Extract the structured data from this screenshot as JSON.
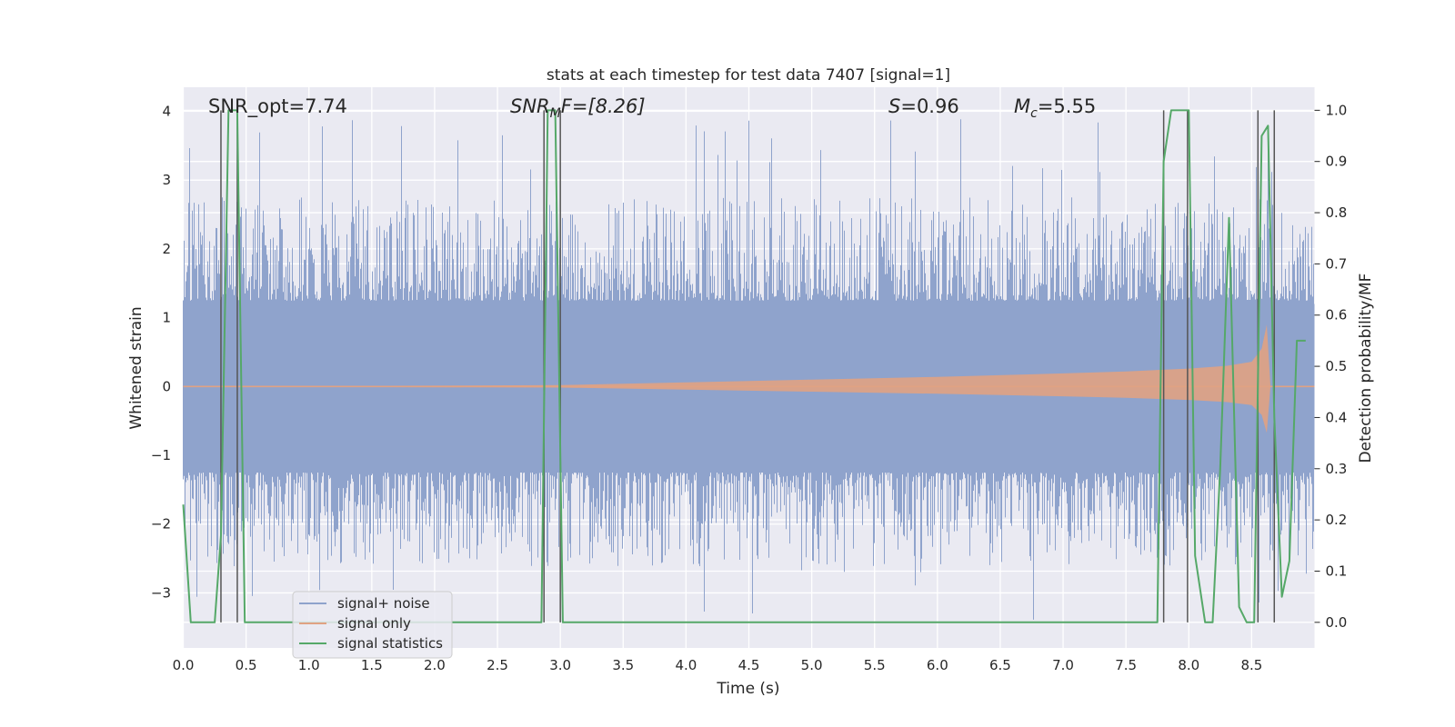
{
  "chart_data": {
    "type": "line",
    "title": "stats at each timestep for test data 7407 [signal=1]",
    "xlabel": "Time (s)",
    "ylabel": "Whitened strain",
    "ylabel_right": "Detection probability/MF",
    "xlim": [
      0,
      9
    ],
    "ylim": [
      -3.8,
      4.35
    ],
    "ylim_right": [
      -0.05,
      1.045
    ],
    "x_ticks": [
      "0.0",
      "0.5",
      "1.0",
      "1.5",
      "2.0",
      "2.5",
      "3.0",
      "3.5",
      "4.0",
      "4.5",
      "5.0",
      "5.5",
      "6.0",
      "6.5",
      "7.0",
      "7.5",
      "8.0",
      "8.5"
    ],
    "y_ticks": [
      "−3",
      "−2",
      "−1",
      "0",
      "1",
      "2",
      "3",
      "4"
    ],
    "y_ticks_right": [
      "0.0",
      "0.1",
      "0.2",
      "0.3",
      "0.4",
      "0.5",
      "0.6",
      "0.7",
      "0.8",
      "0.9",
      "1.0"
    ],
    "grid": true,
    "legend_position": "lower-left",
    "annotations": {
      "snr_opt": "SNR_opt=7.74",
      "snr_mf_base": "SNR",
      "snr_mf_sub": "M",
      "snr_mf_rest": "F=[8.26]",
      "s_var": "S",
      "s_rest": "=0.96",
      "mc_var": "M",
      "mc_sub": "c",
      "mc_rest": "=5.55"
    },
    "series": [
      {
        "name": "signal+ noise",
        "color": "#8fa3cc",
        "noise_envelope": {
          "core": 1.2,
          "peak_max": 4.0,
          "peak_min": -3.45
        }
      },
      {
        "name": "signal only",
        "color": "#e0a283",
        "chirp_envelope": [
          [
            0,
            0.0
          ],
          [
            3.0,
            0.02
          ],
          [
            4.0,
            0.06
          ],
          [
            5.0,
            0.1
          ],
          [
            6.0,
            0.14
          ],
          [
            7.0,
            0.19
          ],
          [
            7.5,
            0.22
          ],
          [
            8.0,
            0.26
          ],
          [
            8.3,
            0.3
          ],
          [
            8.5,
            0.36
          ],
          [
            8.58,
            0.55
          ],
          [
            8.62,
            0.9
          ],
          [
            8.65,
            0.0
          ],
          [
            9.0,
            0.0
          ]
        ]
      },
      {
        "name": "signal statistics",
        "color": "#55a868",
        "x": [
          0.0,
          0.06,
          0.25,
          0.3,
          0.36,
          0.43,
          0.49,
          0.8,
          2.85,
          2.9,
          2.96,
          3.02,
          3.07,
          7.75,
          7.8,
          7.86,
          8.0,
          8.05,
          8.13,
          8.19,
          8.25,
          8.32,
          8.4,
          8.46,
          8.52,
          8.58,
          8.63,
          8.68,
          8.74,
          8.8,
          8.86,
          8.93
        ],
        "y": [
          0.23,
          0.0,
          0.0,
          0.17,
          1.0,
          1.0,
          0.0,
          0.0,
          0.0,
          1.0,
          1.0,
          0.0,
          0.0,
          0.0,
          0.9,
          1.0,
          1.0,
          0.13,
          0.0,
          0.0,
          0.3,
          0.79,
          0.03,
          0.0,
          0.0,
          0.95,
          0.97,
          0.4,
          0.05,
          0.12,
          0.55,
          0.55
        ]
      }
    ],
    "vlines": [
      0.3,
      0.43,
      2.87,
      3.0,
      7.8,
      7.99,
      8.55,
      8.68
    ]
  }
}
